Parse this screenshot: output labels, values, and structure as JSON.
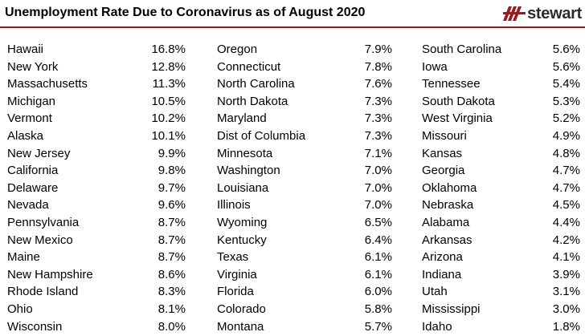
{
  "header": {
    "title": "Unemployment Rate Due to Coronavirus as of August 2020",
    "logo_text": "stewart",
    "accent_color": "#9a1b1f"
  },
  "columns": [
    [
      {
        "state": "Hawaii",
        "rate": "16.8%"
      },
      {
        "state": "New York",
        "rate": "12.8%"
      },
      {
        "state": "Massachusetts",
        "rate": "11.3%"
      },
      {
        "state": "Michigan",
        "rate": "10.5%"
      },
      {
        "state": "Vermont",
        "rate": "10.2%"
      },
      {
        "state": "Alaska",
        "rate": "10.1%"
      },
      {
        "state": "New Jersey",
        "rate": "9.9%"
      },
      {
        "state": "California",
        "rate": "9.8%"
      },
      {
        "state": "Delaware",
        "rate": "9.7%"
      },
      {
        "state": "Nevada",
        "rate": "9.6%"
      },
      {
        "state": "Pennsylvania",
        "rate": "8.7%"
      },
      {
        "state": "New Mexico",
        "rate": "8.7%"
      },
      {
        "state": "Maine",
        "rate": "8.7%"
      },
      {
        "state": "New Hampshire",
        "rate": "8.6%"
      },
      {
        "state": "Rhode Island",
        "rate": "8.3%"
      },
      {
        "state": "Ohio",
        "rate": "8.1%"
      },
      {
        "state": "Wisconsin",
        "rate": "8.0%"
      }
    ],
    [
      {
        "state": "Oregon",
        "rate": "7.9%"
      },
      {
        "state": "Connecticut",
        "rate": "7.8%"
      },
      {
        "state": "North Carolina",
        "rate": "7.6%"
      },
      {
        "state": "North Dakota",
        "rate": "7.3%"
      },
      {
        "state": "Maryland",
        "rate": "7.3%"
      },
      {
        "state": "Dist of Columbia",
        "rate": "7.3%"
      },
      {
        "state": "Minnesota",
        "rate": "7.1%"
      },
      {
        "state": "Washington",
        "rate": "7.0%"
      },
      {
        "state": "Louisiana",
        "rate": "7.0%"
      },
      {
        "state": "Illinois",
        "rate": "7.0%"
      },
      {
        "state": "Wyoming",
        "rate": "6.5%"
      },
      {
        "state": "Kentucky",
        "rate": "6.4%"
      },
      {
        "state": "Texas",
        "rate": "6.1%"
      },
      {
        "state": "Virginia",
        "rate": "6.1%"
      },
      {
        "state": "Florida",
        "rate": "6.0%"
      },
      {
        "state": "Colorado",
        "rate": "5.8%"
      },
      {
        "state": "Montana",
        "rate": "5.7%"
      }
    ],
    [
      {
        "state": "South Carolina",
        "rate": "5.6%"
      },
      {
        "state": "Iowa",
        "rate": "5.6%"
      },
      {
        "state": "Tennessee",
        "rate": "5.4%"
      },
      {
        "state": "South Dakota",
        "rate": "5.3%"
      },
      {
        "state": "West Virginia",
        "rate": "5.2%"
      },
      {
        "state": "Missouri",
        "rate": "4.9%"
      },
      {
        "state": "Kansas",
        "rate": "4.8%"
      },
      {
        "state": "Georgia",
        "rate": "4.7%"
      },
      {
        "state": "Oklahoma",
        "rate": "4.7%"
      },
      {
        "state": "Nebraska",
        "rate": "4.5%"
      },
      {
        "state": "Alabama",
        "rate": "4.4%"
      },
      {
        "state": "Arkansas",
        "rate": "4.2%"
      },
      {
        "state": "Arizona",
        "rate": "4.1%"
      },
      {
        "state": "Indiana",
        "rate": "3.9%"
      },
      {
        "state": "Utah",
        "rate": "3.1%"
      },
      {
        "state": "Mississippi",
        "rate": "3.0%"
      },
      {
        "state": "Idaho",
        "rate": "1.8%"
      }
    ]
  ]
}
